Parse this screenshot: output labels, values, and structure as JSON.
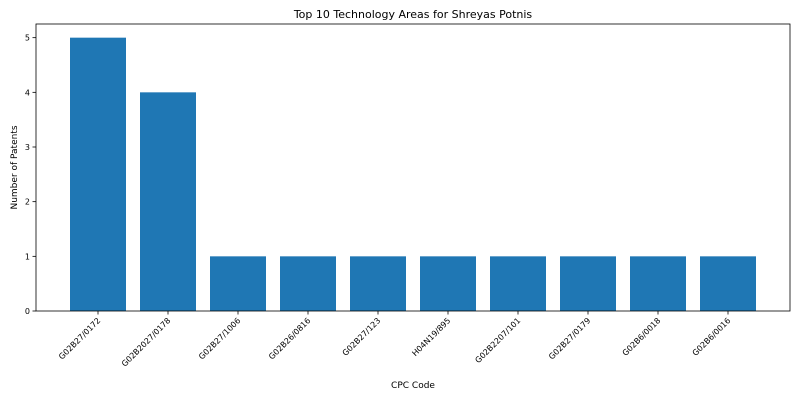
{
  "chart_data": {
    "type": "bar",
    "title": "Top 10 Technology Areas for Shreyas Potnis",
    "xlabel": "CPC Code",
    "ylabel": "Number of Patents",
    "categories": [
      "G02B27/0172",
      "G02B2027/0178",
      "G02B27/1006",
      "G02B26/0816",
      "G02B27/123",
      "H04N19/895",
      "G02B2207/101",
      "G02B27/0179",
      "G02B6/0018",
      "G02B6/0016"
    ],
    "values": [
      5,
      4,
      1,
      1,
      1,
      1,
      1,
      1,
      1,
      1
    ],
    "ylim": [
      0,
      5.25
    ],
    "yticks": [
      "0",
      "1",
      "2",
      "3",
      "4",
      "5"
    ],
    "grid": false,
    "bar_color": "#1f77b4"
  }
}
